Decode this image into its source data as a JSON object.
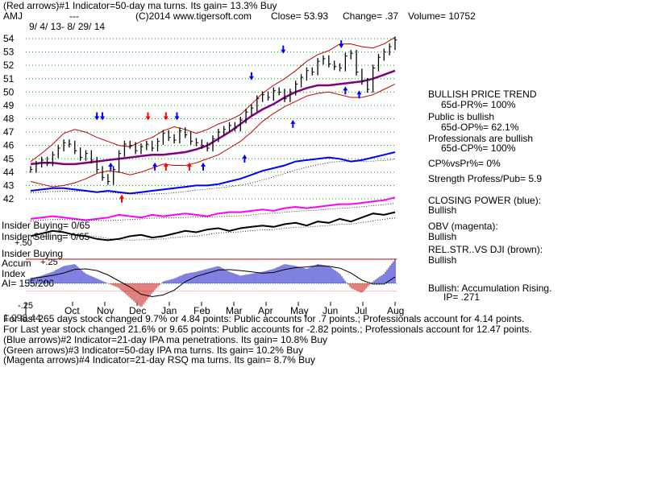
{
  "header": {
    "line1": "(Red arrows)#1 Indicator=50-day ma turns. Its gain= 13.3% Buy",
    "symbol": "AMJ",
    "dashes": "---",
    "copyright": "(C)2014 www.tigersoft.com",
    "close": "Close= 53.93",
    "change": "Change= .37",
    "volume": "Volume= 10752",
    "date_range": "9/ 4/ 13- 8/ 29/ 14"
  },
  "side_panel": {
    "trend_title": "BULLISH PRICE TREND",
    "trend_value": "65d-PR%= 100%",
    "public_title": "Public is bullish",
    "public_value": "65d-OP%= 62.1%",
    "pros_title": "Professionals are bullish",
    "pros_value": "65d-CP%= 100%",
    "cpvspr": "CP%vsPr%= 0%",
    "strength": "Strength Profess/Pub= 5.9",
    "closing_power": "CLOSING POWER (blue):",
    "closing_power_state": "Bullish",
    "obv": "OBV (magenta):",
    "obv_state": "Bullish",
    "relstr": "REL.STR..VS DJI (brown):",
    "relstr_state": "Bullish",
    "accum": "Bullish: Accumulation Rising.",
    "ip": "IP= .271"
  },
  "indicator_labels": {
    "insider_buying_count": "Insider Buying= 0/65",
    "insider_selling_count": "Insider Selling= 0/65",
    "insider_buying": "Insider Buying",
    "accum": "Accum",
    "index": "Index",
    "ai": "AI= 155/200",
    "plus50": "+.50",
    "plus25": "+.25",
    "minus25": "-.25"
  },
  "footer": {
    "line1_overlap": "1.098.44",
    "line1": "For last 265 days stock changed 9.7% or 4.84 points: Public accounts for .7 points.; Professionals account for 4.14 points.",
    "line2": "For Last year stock changed 21.6% or 9.65 points: Public accounts for -2.82 points.; Professionals account for 12.47 points.",
    "line3": "(Blue arrows)#2 Indicator=21-day IPA ma penetrations. Its gain= 10.8% Buy",
    "line4": "(Green arrows)#3 Indicator=50-day IPA ma turns. Its gain= 10.2% Buy",
    "line5": "(Magenta arrows)#4 Indicator=21-day RSQ ma turns. Its gain= 8.7% Buy"
  },
  "colors": {
    "price_bar": "#000000",
    "bands": "#c00000",
    "ma50": "#800080",
    "closing_power": "#0000ff",
    "obv": "#ff00ff",
    "relstr": "#000000",
    "grid": "#00a000",
    "accum_pos": "#0000c0",
    "accum_neg": "#c00000",
    "arrow_red": "#ff0000",
    "arrow_blue": "#0000ff",
    "insider_line": "#c00000"
  },
  "chart_data": {
    "type": "line",
    "title": "AMJ",
    "x_ticks": [
      "Oct",
      "Nov",
      "Dec",
      "Jan",
      "Feb",
      "Mar",
      "Apr",
      "May",
      "Jun",
      "Jul",
      "Aug"
    ],
    "y_ticks": [
      42,
      43,
      44,
      45,
      46,
      47,
      48,
      49,
      50,
      51,
      52,
      53,
      54
    ],
    "ylim": [
      42,
      54.3
    ],
    "grid": true,
    "price_close": {
      "x": [
        0,
        4,
        8,
        12,
        16,
        20,
        24,
        28,
        32,
        36,
        40,
        44,
        48,
        52,
        56,
        60,
        64,
        68,
        72,
        76,
        80,
        84,
        88,
        92,
        96,
        100,
        104,
        108,
        112,
        116,
        120,
        124,
        128,
        132,
        136,
        140,
        144,
        148,
        152,
        156,
        160,
        164,
        168,
        172,
        176,
        180,
        184,
        188,
        192,
        196,
        200,
        204,
        208,
        212,
        216,
        220,
        224,
        228,
        232,
        236,
        240,
        244,
        248,
        252,
        256,
        260,
        264
      ],
      "y": [
        44.2,
        44.6,
        44.9,
        44.7,
        45.3,
        45.8,
        46.2,
        46.1,
        45.6,
        45.1,
        45.4,
        44.9,
        44.2,
        43.6,
        43.3,
        44.2,
        45.4,
        46.1,
        46.0,
        45.6,
        45.9,
        46.1,
        45.8,
        46.3,
        46.9,
        46.6,
        46.4,
        47.1,
        46.8,
        46.3,
        46.2,
        46.0,
        45.8,
        46.5,
        47.0,
        47.2,
        47.5,
        47.3,
        47.9,
        48.5,
        48.8,
        49.5,
        49.8,
        49.6,
        50.1,
        50.0,
        49.5,
        50.0,
        50.6,
        51.1,
        51.6,
        51.5,
        52.3,
        52.5,
        52.1,
        51.9,
        51.8,
        52.7,
        52.9,
        51.5,
        50.8,
        50.2,
        51.8,
        52.6,
        53.0,
        53.4,
        53.9
      ]
    },
    "bands": {
      "upper": [
        44.8,
        45.4,
        46.1,
        46.9,
        47.2,
        47.0,
        46.6,
        46.3,
        46.0,
        45.9,
        46.3,
        46.6,
        47.1,
        47.4,
        47.2,
        46.9,
        47.2,
        47.6,
        47.9,
        48.3,
        49.1,
        49.9,
        50.5,
        51.0,
        51.6,
        52.3,
        52.8,
        53.1,
        53.6,
        53.6,
        53.4,
        53.3,
        53.6,
        54.1
      ],
      "lower": [
        43.3,
        43.1,
        42.9,
        43.0,
        43.2,
        43.5,
        43.9,
        44.1,
        44.0,
        43.8,
        44.0,
        44.3,
        44.6,
        44.5,
        44.5,
        44.7,
        45.0,
        45.3,
        45.8,
        46.3,
        47.0,
        47.8,
        48.4,
        48.9,
        49.3,
        49.7,
        49.9,
        50.0,
        49.8,
        49.6,
        49.6,
        49.8,
        50.2,
        50.6
      ]
    },
    "ma50": [
      44.6,
      44.7,
      44.7,
      44.6,
      44.6,
      44.7,
      44.8,
      44.9,
      45.0,
      45.1,
      45.2,
      45.3,
      45.3,
      45.4,
      45.5,
      45.7,
      46.0,
      46.5,
      47.0,
      47.6,
      48.2,
      48.7,
      49.1,
      49.6,
      50.0,
      50.3,
      50.5,
      50.5,
      50.6,
      50.7,
      50.8,
      51.0,
      51.3,
      51.6
    ],
    "closing_power": [
      42.6,
      42.7,
      42.8,
      42.8,
      42.7,
      42.6,
      42.5,
      42.6,
      42.5,
      42.4,
      42.5,
      42.6,
      42.7,
      42.8,
      42.9,
      43.0,
      43.0,
      43.1,
      43.3,
      43.5,
      43.8,
      44.1,
      44.3,
      44.5,
      44.8,
      44.9,
      45.0,
      45.1,
      45.0,
      44.8,
      44.9,
      45.1,
      45.3,
      45.5
    ],
    "obv": [
      40.5,
      40.6,
      40.7,
      40.6,
      40.5,
      40.4,
      40.5,
      40.6,
      40.8,
      40.7,
      40.6,
      40.8,
      40.7,
      40.8,
      40.9,
      40.8,
      40.7,
      40.9,
      41.0,
      41.0,
      41.1,
      41.2,
      41.1,
      41.3,
      41.4,
      41.3,
      41.4,
      41.5,
      41.6,
      41.6,
      41.7,
      41.8,
      41.9,
      42.1
    ],
    "relstr": [
      39.2,
      39.4,
      39.6,
      39.5,
      39.3,
      39.2,
      39.0,
      38.9,
      39.0,
      39.2,
      39.3,
      39.1,
      39.2,
      39.4,
      39.6,
      39.5,
      39.7,
      39.8,
      39.6,
      39.8,
      39.9,
      40.0,
      39.9,
      40.1,
      40.2,
      40.0,
      40.3,
      40.2,
      40.5,
      40.3,
      40.6,
      40.9,
      40.8,
      41.0
    ],
    "accum_index": [
      0.05,
      0.08,
      0.12,
      0.18,
      0.2,
      0.1,
      0.05,
      0.0,
      -0.05,
      -0.15,
      -0.25,
      -0.1,
      0.02,
      0.05,
      0.1,
      0.12,
      0.15,
      0.18,
      0.12,
      0.08,
      0.1,
      0.12,
      0.15,
      0.2,
      0.18,
      0.15,
      0.2,
      0.18,
      0.1,
      -0.05,
      -0.1,
      0.02,
      0.1,
      0.25
    ],
    "arrows": [
      {
        "type": "blue",
        "x": 48,
        "dir": "down",
        "y": 48
      },
      {
        "type": "blue",
        "x": 52,
        "dir": "down",
        "y": 48
      },
      {
        "type": "red",
        "x": 85,
        "dir": "down",
        "y": 48
      },
      {
        "type": "red",
        "x": 98,
        "dir": "down",
        "y": 48
      },
      {
        "type": "blue",
        "x": 106,
        "dir": "down",
        "y": 48
      },
      {
        "type": "blue",
        "x": 160,
        "dir": "down",
        "y": 51
      },
      {
        "type": "blue",
        "x": 183,
        "dir": "down",
        "y": 53
      },
      {
        "type": "blue",
        "x": 225,
        "dir": "down",
        "y": 53.4
      },
      {
        "type": "blue",
        "x": 58,
        "dir": "up",
        "y": 44.6
      },
      {
        "type": "red",
        "x": 66,
        "dir": "up",
        "y": 42.2
      },
      {
        "type": "blue",
        "x": 90,
        "dir": "up",
        "y": 44.6
      },
      {
        "type": "red",
        "x": 98,
        "dir": "up",
        "y": 44.6
      },
      {
        "type": "red",
        "x": 115,
        "dir": "up",
        "y": 44.6
      },
      {
        "type": "blue",
        "x": 125,
        "dir": "up",
        "y": 44.6
      },
      {
        "type": "blue",
        "x": 155,
        "dir": "up",
        "y": 45.2
      },
      {
        "type": "blue",
        "x": 190,
        "dir": "up",
        "y": 47.8
      },
      {
        "type": "blue",
        "x": 228,
        "dir": "up",
        "y": 50.3
      },
      {
        "type": "blue",
        "x": 238,
        "dir": "up",
        "y": 50.0
      }
    ]
  }
}
